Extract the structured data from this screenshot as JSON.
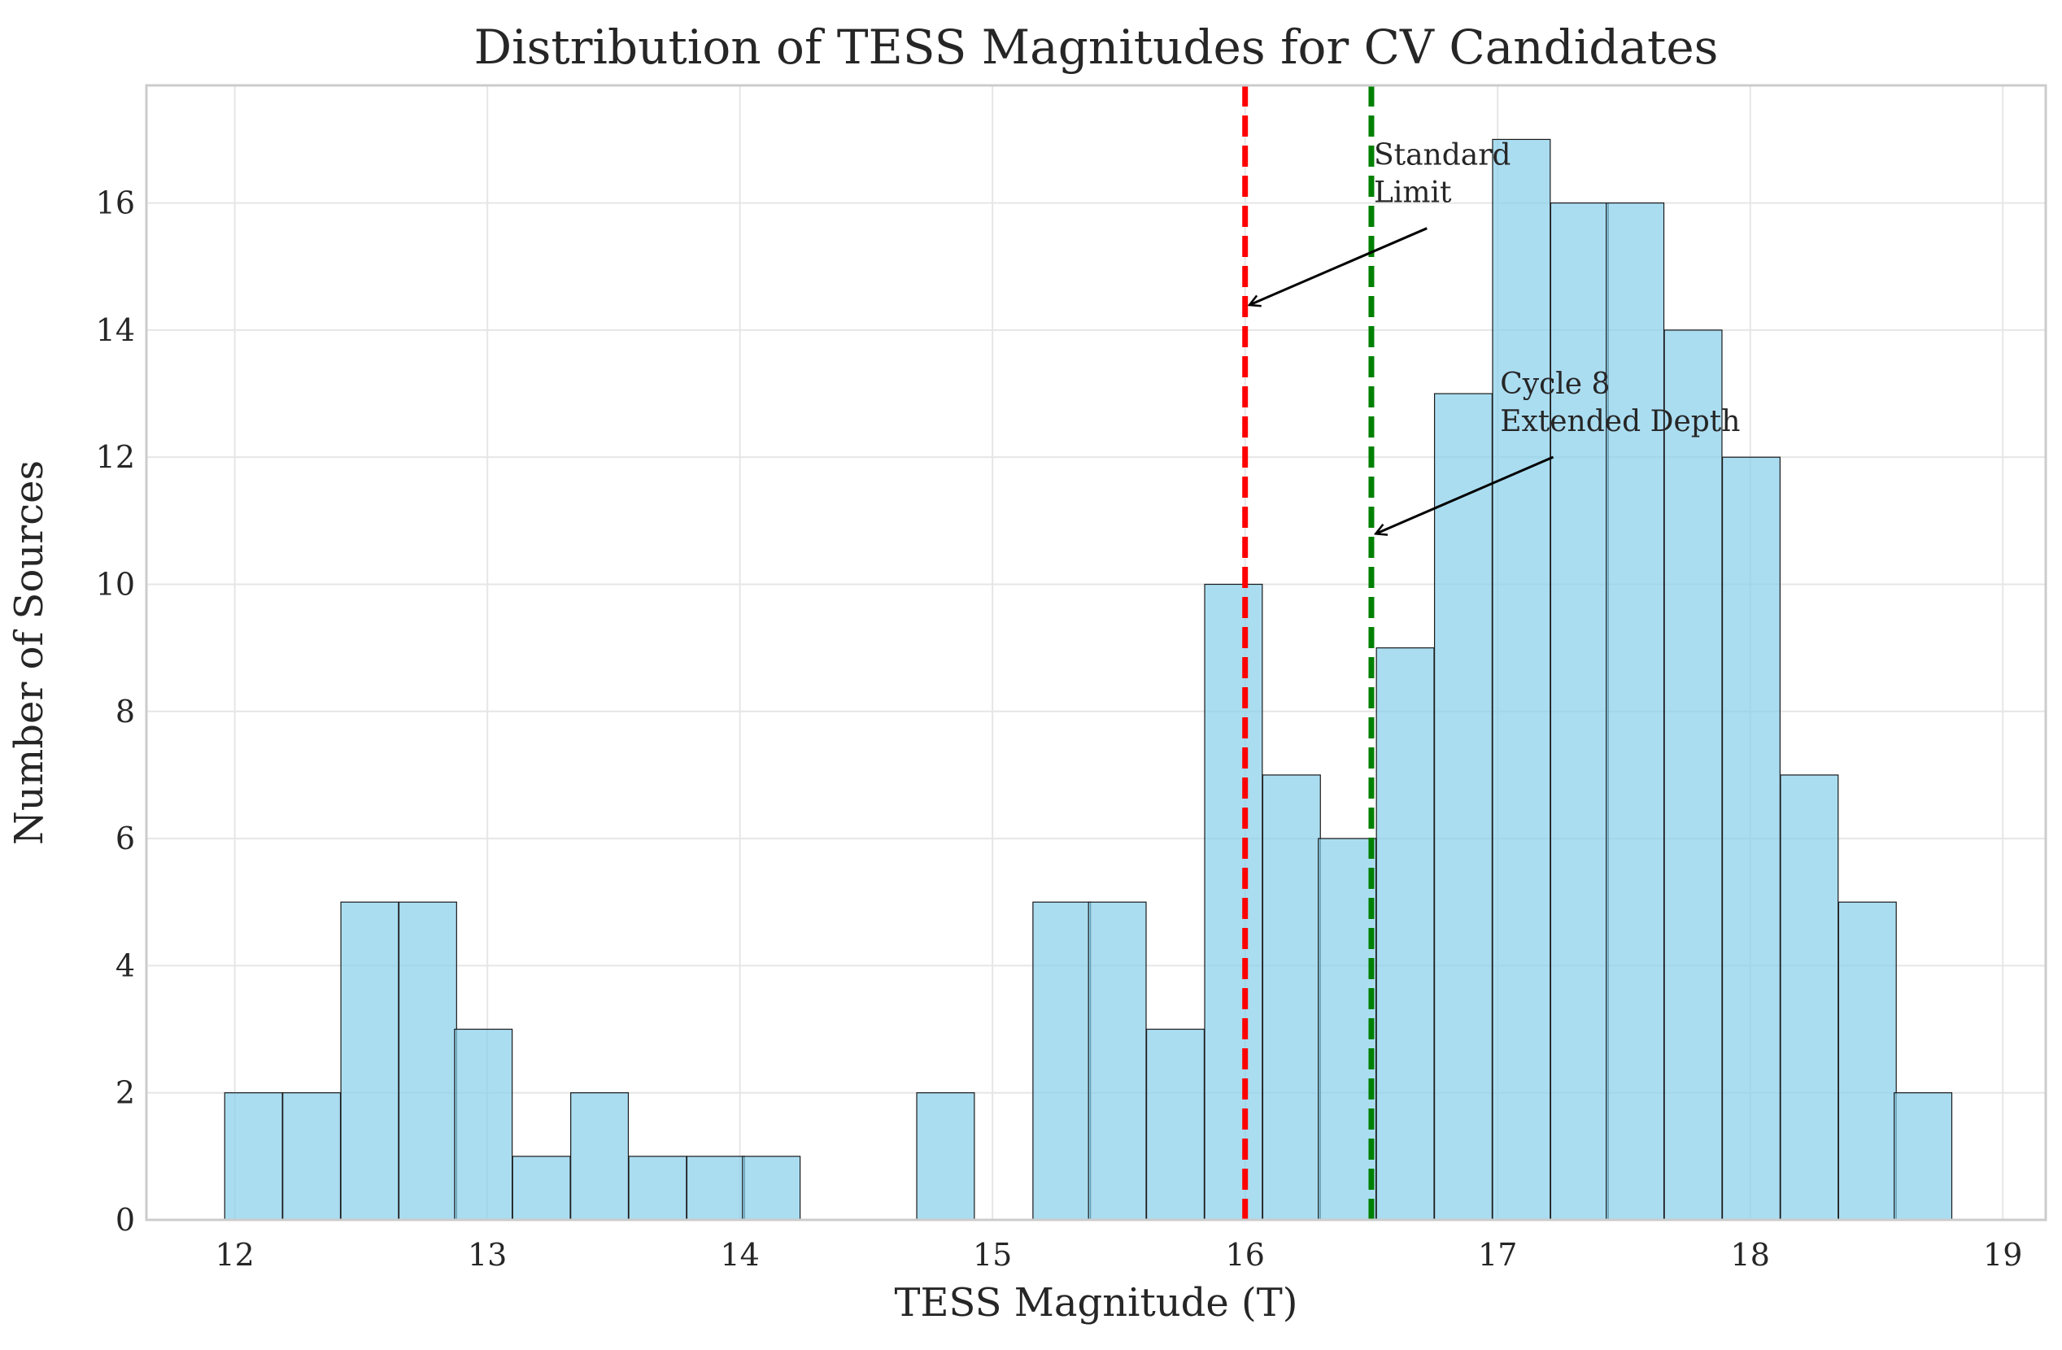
{
  "chart_data": {
    "type": "bar",
    "title": "Distribution of TESS Magnitudes for CV Candidates",
    "xlabel": "TESS Magnitude (T)",
    "ylabel": "Number of Sources",
    "xlim": [
      11.65,
      19.17
    ],
    "ylim": [
      0,
      17.85
    ],
    "xticks": [
      12,
      13,
      14,
      15,
      16,
      17,
      18,
      19
    ],
    "yticks": [
      0,
      2,
      4,
      6,
      8,
      10,
      12,
      14,
      16
    ],
    "grid": true,
    "bin_width": 0.2281,
    "bins": [
      {
        "start": 11.96,
        "count": 2
      },
      {
        "start": 12.19,
        "count": 2
      },
      {
        "start": 12.42,
        "count": 5
      },
      {
        "start": 12.65,
        "count": 5
      },
      {
        "start": 12.87,
        "count": 3
      },
      {
        "start": 13.1,
        "count": 1
      },
      {
        "start": 13.33,
        "count": 2
      },
      {
        "start": 13.56,
        "count": 1
      },
      {
        "start": 13.79,
        "count": 1
      },
      {
        "start": 14.01,
        "count": 1
      },
      {
        "start": 14.24,
        "count": 0
      },
      {
        "start": 14.47,
        "count": 0
      },
      {
        "start": 14.7,
        "count": 2
      },
      {
        "start": 14.93,
        "count": 0
      },
      {
        "start": 15.16,
        "count": 5
      },
      {
        "start": 15.38,
        "count": 5
      },
      {
        "start": 15.61,
        "count": 3
      },
      {
        "start": 15.84,
        "count": 10
      },
      {
        "start": 16.07,
        "count": 7
      },
      {
        "start": 16.29,
        "count": 6
      },
      {
        "start": 16.52,
        "count": 9
      },
      {
        "start": 16.75,
        "count": 13
      },
      {
        "start": 16.98,
        "count": 17
      },
      {
        "start": 17.21,
        "count": 16
      },
      {
        "start": 17.43,
        "count": 16
      },
      {
        "start": 17.66,
        "count": 14
      },
      {
        "start": 17.89,
        "count": 12
      },
      {
        "start": 18.12,
        "count": 7
      },
      {
        "start": 18.35,
        "count": 5
      },
      {
        "start": 18.57,
        "count": 2
      }
    ],
    "bar_color": "#87CEEB",
    "edge_color": "#1a1a1a",
    "vlines": [
      {
        "x": 16.0,
        "color": "#ff0000",
        "style": "dashed"
      },
      {
        "x": 16.5,
        "color": "#008000",
        "style": "dashed"
      }
    ],
    "annotations": [
      {
        "lines": [
          "Standard",
          "Limit"
        ],
        "text_x": 16.5,
        "text_y": 16.6,
        "arrow_x": 16.02,
        "arrow_y": 14.4
      },
      {
        "lines": [
          "Cycle 8",
          "Extended Depth"
        ],
        "text_x": 17.0,
        "text_y": 13.0,
        "arrow_x": 16.52,
        "arrow_y": 10.8
      }
    ]
  }
}
